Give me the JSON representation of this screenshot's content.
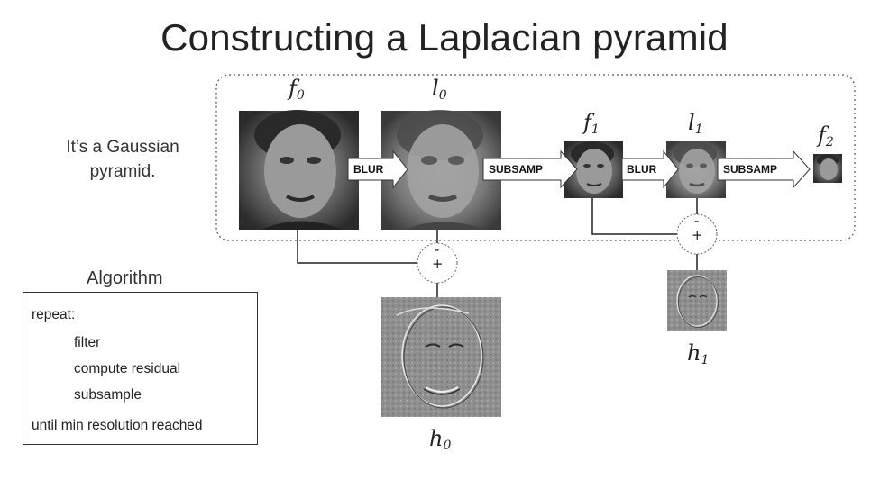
{
  "title": "Constructing a Laplacian pyramid",
  "side_note": "It’s a Gaussian pyramid.",
  "algorithm": {
    "heading": "Algorithm",
    "lines": [
      "repeat:",
      "filter",
      "compute residual",
      "subsample",
      "until min resolution reached"
    ]
  },
  "labels": {
    "f0": {
      "base": "f",
      "sub": "0"
    },
    "l0": {
      "base": "l",
      "sub": "0"
    },
    "f1": {
      "base": "f",
      "sub": "1"
    },
    "l1": {
      "base": "l",
      "sub": "1"
    },
    "f2": {
      "base": "f",
      "sub": "2"
    },
    "h0": {
      "base": "h",
      "sub": "0"
    },
    "h1": {
      "base": "h",
      "sub": "1"
    }
  },
  "arrows": {
    "blur0": "BLUR",
    "subsamp0": "SUBSAMP",
    "blur1": "BLUR",
    "subsamp1": "SUBSAMP"
  },
  "operators": {
    "plus": "+",
    "minus": "-"
  }
}
